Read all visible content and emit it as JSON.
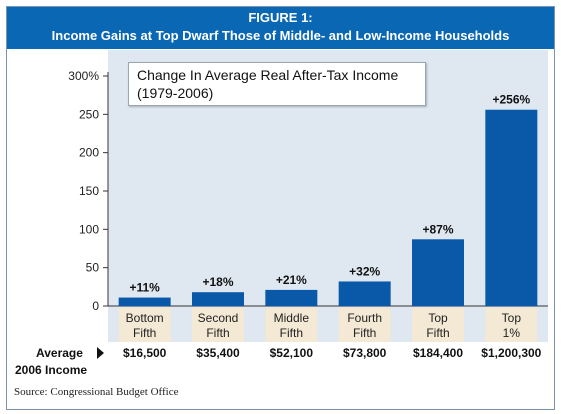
{
  "figure": {
    "label": "FIGURE 1:",
    "title": "Income Gains at Top Dwarf Those of Middle- and Low-Income Households"
  },
  "chart_data": {
    "type": "bar",
    "title_line1": "Change In Average Real After-Tax Income",
    "title_line2": "(1979-2006)",
    "categories": [
      [
        "Bottom",
        "Fifth"
      ],
      [
        "Second",
        "Fifth"
      ],
      [
        "Middle",
        "Fifth"
      ],
      [
        "Fourth",
        "Fifth"
      ],
      [
        "Top",
        "Fifth"
      ],
      [
        "Top",
        "1%"
      ]
    ],
    "values": [
      11,
      18,
      21,
      32,
      87,
      256
    ],
    "value_labels": [
      "+11%",
      "+18%",
      "+21%",
      "+32%",
      "+87%",
      "+256%"
    ],
    "avg_income": [
      "$16,500",
      "$35,400",
      "$52,100",
      "$73,800",
      "$184,400",
      "$1,200,300"
    ],
    "ylim": [
      0,
      300
    ],
    "yticks": [
      "0",
      "50",
      "100",
      "150",
      "200",
      "250",
      "300%"
    ],
    "ytick_values": [
      0,
      50,
      100,
      150,
      200,
      250,
      300
    ],
    "bar_color": "#0a58a8",
    "plot_bg": "#dfe8f1",
    "grid": false
  },
  "avg_label": {
    "line1": "Average",
    "line2": "2006 Income"
  },
  "source": "Source: Congressional Budget Office"
}
